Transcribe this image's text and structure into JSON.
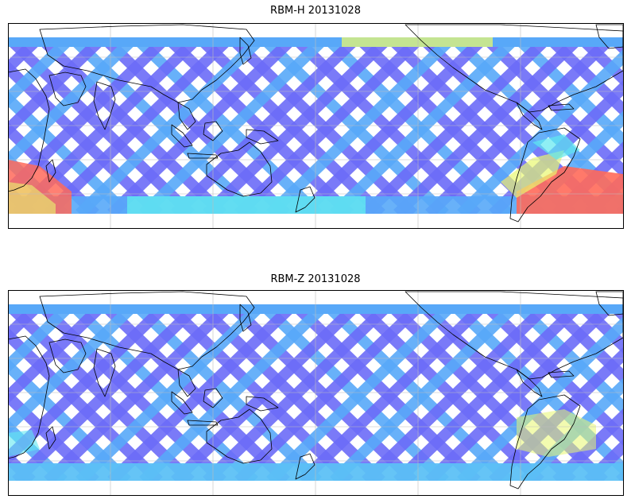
{
  "panels": [
    {
      "title": "RBM-H 20131028",
      "hot": "south"
    },
    {
      "title": "RBM-Z 20131028",
      "hot": "mild"
    }
  ],
  "colors": {
    "low": "#6b6bf7",
    "mid_low": "#58a8f8",
    "mid": "#60e8f0",
    "mid_high": "#e8f870",
    "high": "#ff6a5a",
    "coast": "#000000",
    "grid": "#bdbdbd"
  }
}
